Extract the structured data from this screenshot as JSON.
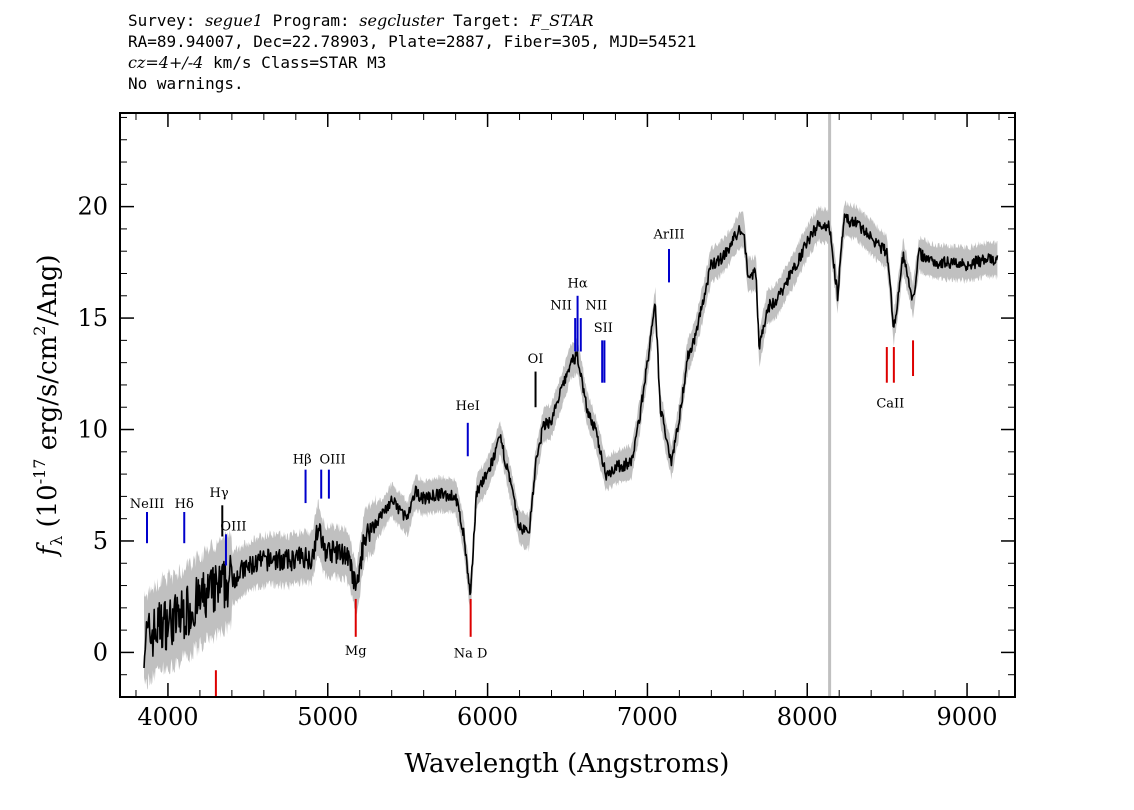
{
  "header": {
    "survey_label": "Survey:",
    "survey": "segue1",
    "program_label": "Program:",
    "program": "segcluster",
    "target_label": "Target:",
    "target": "F_STAR",
    "line2": "RA=89.94007, Dec=22.78903, Plate=2887, Fiber=305, MJD=54521",
    "cz": "cz=4+/-4",
    "line3_rest": " km/s Class=STAR M3",
    "line4": "No warnings."
  },
  "chart_data": {
    "type": "line",
    "xlabel": "Wavelength (Angstroms)",
    "ylabel_prefix": "f",
    "ylabel_sub": "λ",
    "ylabel_mid": " (10",
    "ylabel_exp": "-17",
    "ylabel_unit": " erg/s/cm",
    "ylabel_exp2": "2",
    "ylabel_end": "/Ang)",
    "xlim": [
      3700,
      9300
    ],
    "ylim": [
      -2,
      24.2
    ],
    "x_ticks": [
      4000,
      5000,
      6000,
      7000,
      8000,
      9000
    ],
    "x_tick_labels": [
      "4000",
      "5000",
      "6000",
      "7000",
      "8000",
      "9000"
    ],
    "y_ticks": [
      0,
      5,
      10,
      15,
      20
    ],
    "y_tick_labels": [
      "0",
      "5",
      "10",
      "15",
      "20"
    ],
    "grey_vline_x": 8140,
    "spectrum_anchors": [
      [
        3850,
        0.5
      ],
      [
        3950,
        1.2
      ],
      [
        4050,
        1.5
      ],
      [
        4150,
        2.0
      ],
      [
        4250,
        2.6
      ],
      [
        4350,
        3.0
      ],
      [
        4450,
        3.6
      ],
      [
        4550,
        4.0
      ],
      [
        4650,
        4.2
      ],
      [
        4750,
        4.1
      ],
      [
        4850,
        4.3
      ],
      [
        4900,
        4.2
      ],
      [
        4940,
        5.6
      ],
      [
        4980,
        4.6
      ],
      [
        5050,
        4.5
      ],
      [
        5120,
        4.4
      ],
      [
        5180,
        2.8
      ],
      [
        5230,
        5.2
      ],
      [
        5300,
        5.8
      ],
      [
        5400,
        6.8
      ],
      [
        5450,
        6.4
      ],
      [
        5500,
        6.0
      ],
      [
        5550,
        7.2
      ],
      [
        5600,
        6.9
      ],
      [
        5700,
        7.1
      ],
      [
        5800,
        7.0
      ],
      [
        5850,
        5.3
      ],
      [
        5893,
        2.4
      ],
      [
        5930,
        7.2
      ],
      [
        6000,
        8.0
      ],
      [
        6080,
        9.6
      ],
      [
        6130,
        8.0
      ],
      [
        6200,
        5.6
      ],
      [
        6260,
        5.4
      ],
      [
        6300,
        8.4
      ],
      [
        6350,
        10.2
      ],
      [
        6400,
        10.4
      ],
      [
        6450,
        11.5
      ],
      [
        6520,
        13.0
      ],
      [
        6563,
        13.3
      ],
      [
        6620,
        11.0
      ],
      [
        6680,
        9.8
      ],
      [
        6740,
        8.0
      ],
      [
        6800,
        8.3
      ],
      [
        6850,
        8.4
      ],
      [
        6900,
        8.5
      ],
      [
        6950,
        10.5
      ],
      [
        7000,
        13.0
      ],
      [
        7050,
        15.6
      ],
      [
        7080,
        11.0
      ],
      [
        7120,
        9.6
      ],
      [
        7150,
        8.6
      ],
      [
        7200,
        10.5
      ],
      [
        7250,
        13.2
      ],
      [
        7300,
        14.2
      ],
      [
        7400,
        17.4
      ],
      [
        7450,
        17.6
      ],
      [
        7500,
        18.0
      ],
      [
        7560,
        18.8
      ],
      [
        7600,
        19.0
      ],
      [
        7630,
        16.9
      ],
      [
        7680,
        17.0
      ],
      [
        7700,
        13.6
      ],
      [
        7750,
        15.5
      ],
      [
        7800,
        15.7
      ],
      [
        7900,
        17.0
      ],
      [
        8000,
        18.4
      ],
      [
        8070,
        19.2
      ],
      [
        8140,
        19.1
      ],
      [
        8190,
        16.0
      ],
      [
        8230,
        19.4
      ],
      [
        8300,
        19.3
      ],
      [
        8400,
        18.6
      ],
      [
        8500,
        17.9
      ],
      [
        8542,
        14.5
      ],
      [
        8600,
        17.8
      ],
      [
        8662,
        15.8
      ],
      [
        8700,
        17.9
      ],
      [
        8800,
        17.5
      ],
      [
        8900,
        17.5
      ],
      [
        9000,
        17.4
      ],
      [
        9100,
        17.6
      ],
      [
        9190,
        17.6
      ]
    ],
    "lines_blue": [
      {
        "label": "NeIII",
        "x": 3869,
        "y1": 6.3,
        "y2": 4.9
      },
      {
        "label": "Hδ",
        "x": 4102,
        "y1": 6.3,
        "y2": 4.9
      },
      {
        "label": "OIII",
        "x": 4363,
        "y1": 5.3,
        "y2": 3.9
      },
      {
        "label": "Hβ",
        "x": 4861,
        "y1": 8.2,
        "y2": 6.7
      },
      {
        "label": "OIII",
        "x": 4959,
        "y1": 8.2,
        "y2": 6.9
      },
      {
        "label": "OIII",
        "x": 5007,
        "y1": 8.2,
        "y2": 6.9
      },
      {
        "label": "HeI",
        "x": 5876,
        "y1": 10.3,
        "y2": 8.8
      },
      {
        "label": "NII",
        "x": 6548,
        "y1": 15.0,
        "y2": 13.5
      },
      {
        "label": "Hα",
        "x": 6563,
        "y1": 16.0,
        "y2": 13.5
      },
      {
        "label": "NII",
        "x": 6583,
        "y1": 15.0,
        "y2": 13.5
      },
      {
        "label": "SII",
        "x": 6717,
        "y1": 14.0,
        "y2": 12.1
      },
      {
        "label": "SII",
        "x": 6731,
        "y1": 14.0,
        "y2": 12.1
      },
      {
        "label": "ArIII",
        "x": 7135,
        "y1": 18.1,
        "y2": 16.6
      }
    ],
    "lines_black": [
      {
        "label": "Hγ",
        "x": 4340,
        "y1": 6.6,
        "y2": 5.2
      },
      {
        "label": "OI",
        "x": 6300,
        "y1": 12.6,
        "y2": 11.0
      }
    ],
    "lines_red": [
      {
        "label": "Mg",
        "x": 5175,
        "y1": 0.7,
        "y2": 2.4
      },
      {
        "label": "Na D",
        "x": 5894,
        "y1": 0.7,
        "y2": 2.4
      },
      {
        "label": "CaII",
        "x": 8498,
        "y1": 12.1,
        "y2": 13.7
      },
      {
        "label": "CaII",
        "x": 8542,
        "y1": 12.1,
        "y2": 13.7
      },
      {
        "label": "CaII",
        "x": 8662,
        "y1": 12.4,
        "y2": 14.0
      },
      {
        "label": "",
        "x": 4300,
        "y1": -2.0,
        "y2": -0.8
      }
    ],
    "line_labels": [
      {
        "text": "NeIII",
        "x": 3869,
        "y": 6.3
      },
      {
        "text": "Hδ",
        "x": 4102,
        "y": 6.3
      },
      {
        "text": "Hγ",
        "x": 4320,
        "y": 6.8
      },
      {
        "text": "OIII",
        "x": 4410,
        "y": 5.3
      },
      {
        "text": "Hβ",
        "x": 4840,
        "y": 8.3
      },
      {
        "text": "OIII",
        "x": 5030,
        "y": 8.3
      },
      {
        "text": "HeI",
        "x": 5876,
        "y": 10.7
      },
      {
        "text": "OI",
        "x": 6300,
        "y": 12.8
      },
      {
        "text": "NII",
        "x": 6460,
        "y": 15.2
      },
      {
        "text": "Hα",
        "x": 6563,
        "y": 16.2
      },
      {
        "text": "NII",
        "x": 6680,
        "y": 15.2
      },
      {
        "text": "SII",
        "x": 6724,
        "y": 14.2
      },
      {
        "text": "ArIII",
        "x": 7135,
        "y": 18.4
      },
      {
        "text": "CaII",
        "x": 8520,
        "y": 10.8
      },
      {
        "text": "Mg",
        "x": 5175,
        "y": -0.3
      },
      {
        "text": "Na D",
        "x": 5894,
        "y": -0.4
      }
    ],
    "colors": {
      "spectrum": "#000000",
      "error_band": "#c0c0c0",
      "emission": "#0000cc",
      "absorption": "#dd0000",
      "neutral": "#000000",
      "grey_line": "#c0c0c0"
    }
  }
}
